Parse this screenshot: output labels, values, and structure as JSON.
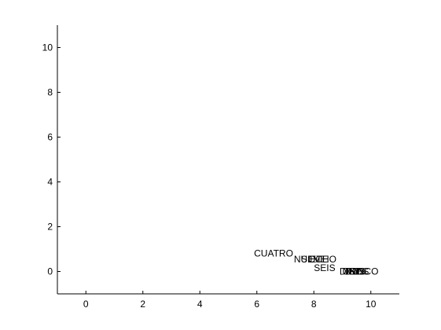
{
  "chart_data": {
    "type": "scatter",
    "title": "",
    "xlabel": "",
    "ylabel": "",
    "xlim": [
      -1,
      11
    ],
    "ylim": [
      -1,
      11
    ],
    "xticks": [
      0,
      2,
      4,
      6,
      8,
      10
    ],
    "yticks": [
      0,
      2,
      4,
      6,
      8,
      10
    ],
    "grid": false,
    "legend": "none",
    "points": [
      {
        "label": "CUATRO",
        "x": 5.9,
        "y": 0.8
      },
      {
        "label": "NUEVE",
        "x": 7.3,
        "y": 0.55
      },
      {
        "label": "SIETE",
        "x": 7.55,
        "y": 0.55
      },
      {
        "label": "OCHO",
        "x": 7.8,
        "y": 0.55
      },
      {
        "label": "SEIS",
        "x": 8.0,
        "y": 0.15
      },
      {
        "label": "DIEZ",
        "x": 8.9,
        "y": 0.0
      },
      {
        "label": "UNO",
        "x": 9.0,
        "y": 0.0
      },
      {
        "label": "TRES",
        "x": 9.05,
        "y": 0.0
      },
      {
        "label": "DOS",
        "x": 9.1,
        "y": 0.0
      },
      {
        "label": "CINCO",
        "x": 9.2,
        "y": 0.0
      }
    ]
  }
}
